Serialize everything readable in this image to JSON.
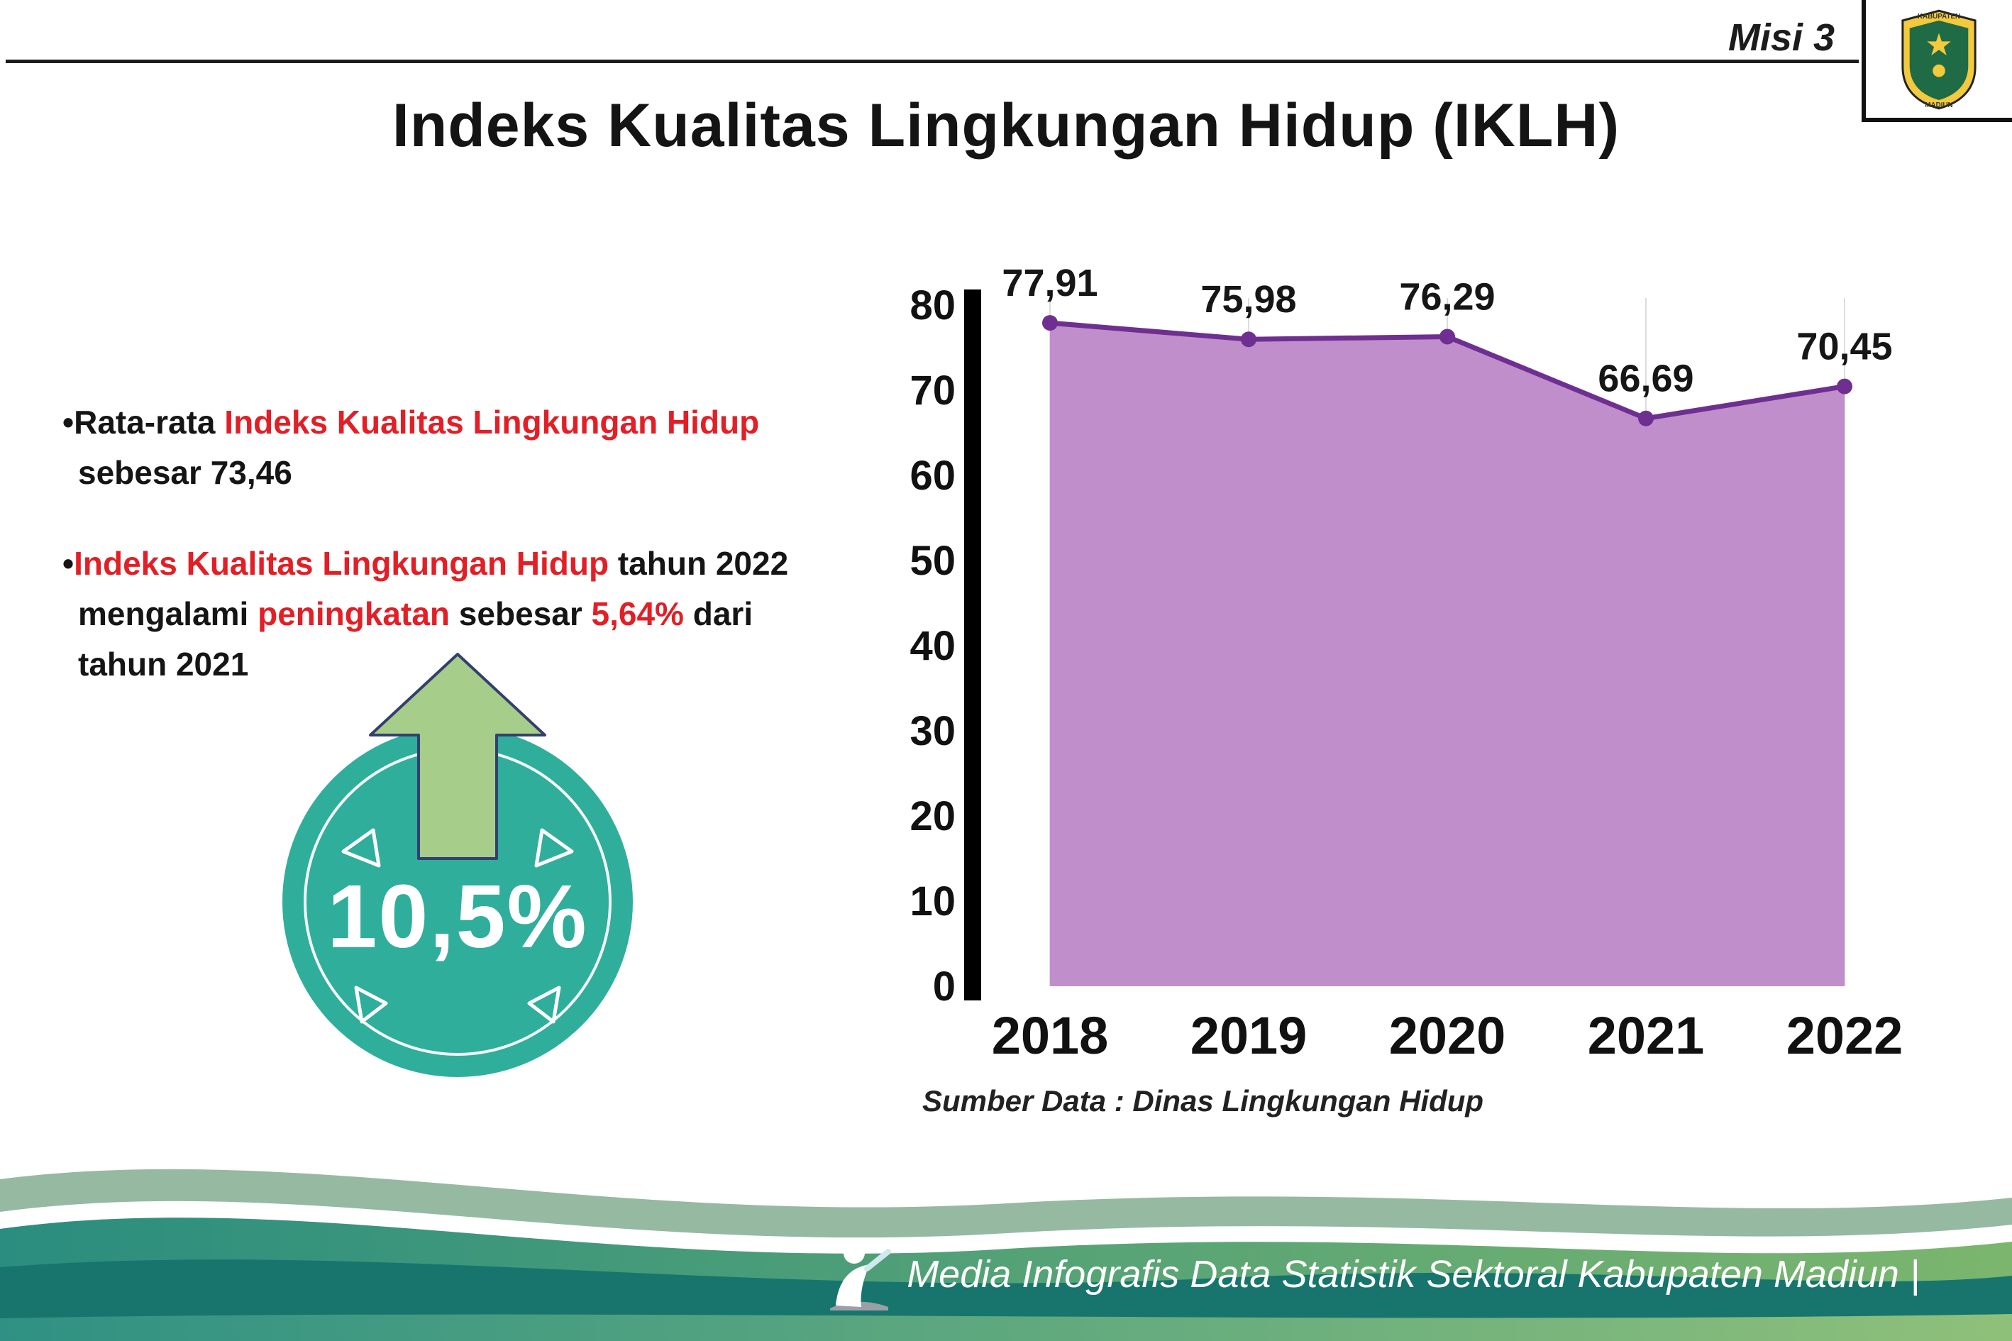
{
  "header": {
    "misi_label": "Misi 3",
    "title": "Indeks Kualitas Lingkungan Hidup (IKLH)"
  },
  "logo": {
    "top_text": "KABUPATEN",
    "bottom_text": "MADIUN"
  },
  "bullets": {
    "b1": {
      "p1": "•Rata-rata ",
      "p2": "Indeks Kualitas Lingkungan Hidup",
      "p3": "sebesar 73,46"
    },
    "b2": {
      "p1": "•",
      "p2": "Indeks Kualitas Lingkungan Hidup",
      "p3": " tahun 2022",
      "p4": "mengalami ",
      "p5": "peningkatan",
      "p6": " sebesar ",
      "p7": "5,64%",
      "p8": " dari",
      "p9": "tahun 2021"
    }
  },
  "badge": {
    "value": "10,5%"
  },
  "chart_data": {
    "type": "area",
    "title": "Indeks Kualitas Lingkungan Hidup (IKLH)",
    "categories": [
      "2018",
      "2019",
      "2020",
      "2021",
      "2022"
    ],
    "values": [
      77.91,
      75.98,
      76.29,
      66.69,
      70.45
    ],
    "value_labels": [
      "77,91",
      "75,98",
      "76,29",
      "66,69",
      "70,45"
    ],
    "ylim": [
      0,
      80
    ],
    "yticks": [
      0,
      10,
      20,
      30,
      40,
      50,
      60,
      70,
      80
    ],
    "grid": "vertical-light",
    "legend": "none",
    "line_color": "#6f2f91",
    "fill_color": "#c08fcb",
    "source_note": "Sumber Data : Dinas Lingkungan Hidup"
  },
  "footer": {
    "caption": "Media Infografis Data Statistik Sektoral Kabupaten Madiun |"
  },
  "colors": {
    "accent_red": "#e21f26",
    "badge_teal": "#2fae9b",
    "arrow_green": "#a6cd89",
    "chart_line_purple": "#6f2f91",
    "chart_fill_purple": "#c08fcb",
    "footer_dark_teal": "#17756d"
  }
}
